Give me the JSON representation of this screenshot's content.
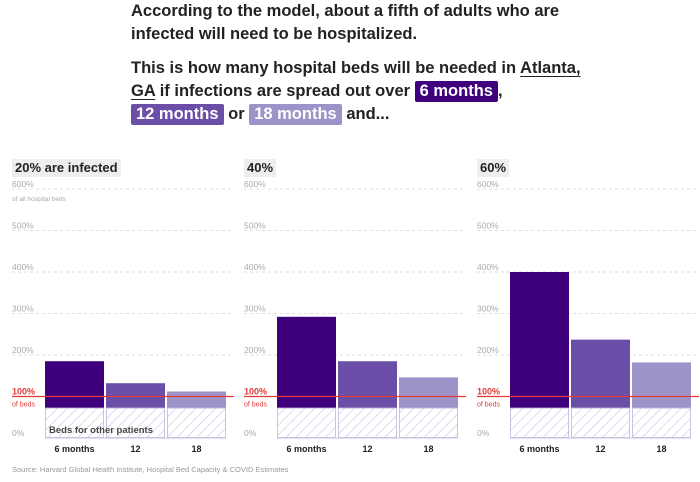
{
  "intro": {
    "line1": "According to the model, about a fifth of adults who are infected will need to be hospitalized.",
    "line2_pre": "This is how many hospital beds will be needed in ",
    "city": "Atlanta, GA",
    "line2_mid": " if infections are spread out over ",
    "chip6": "6 months",
    "line2_comma": ",",
    "chip12": "12 months",
    "or": " or ",
    "chip18": "18 months",
    "and": " and..."
  },
  "colors": {
    "six_months": "#3e007d",
    "twelve_months": "#6a4ea7",
    "eighteen_months": "#9c93c8",
    "capacity_line": "#e03b3b",
    "hatch": "#c9c2e2"
  },
  "chart_data": [
    {
      "type": "bar",
      "title": "20% are infected",
      "categories": [
        "6 months",
        "12",
        "18"
      ],
      "values": [
        185,
        132,
        112
      ],
      "ylim": [
        0,
        600
      ],
      "yticks": [
        "0%",
        "100%",
        "200%",
        "300%",
        "400%",
        "500%",
        "600%"
      ],
      "ylabel_top": "of all hospital beds",
      "capacity_label": "of beds",
      "capacity_value": 100,
      "other_patients_value": 72,
      "other_patients_label": "Beds for other patients",
      "grid": true
    },
    {
      "type": "bar",
      "title": "40%",
      "categories": [
        "6 months",
        "12",
        "18"
      ],
      "values": [
        292,
        185,
        146
      ],
      "ylim": [
        0,
        600
      ],
      "yticks": [
        "0%",
        "100%",
        "200%",
        "300%",
        "400%",
        "500%",
        "600%"
      ],
      "ylabel_top": "",
      "capacity_label": "of beds",
      "capacity_value": 100,
      "other_patients_value": 72,
      "other_patients_label": "",
      "grid": true
    },
    {
      "type": "bar",
      "title": "60%",
      "categories": [
        "6 months",
        "12",
        "18"
      ],
      "values": [
        400,
        237,
        182
      ],
      "ylim": [
        0,
        600
      ],
      "yticks": [
        "0%",
        "100%",
        "200%",
        "300%",
        "400%",
        "500%",
        "600%"
      ],
      "ylabel_top": "",
      "capacity_label": "of beds",
      "capacity_value": 100,
      "other_patients_value": 72,
      "other_patients_label": "",
      "grid": true
    }
  ],
  "source": "Source: Harvard Global Health Institute, Hospital Bed Capacity & COVID Estimates"
}
